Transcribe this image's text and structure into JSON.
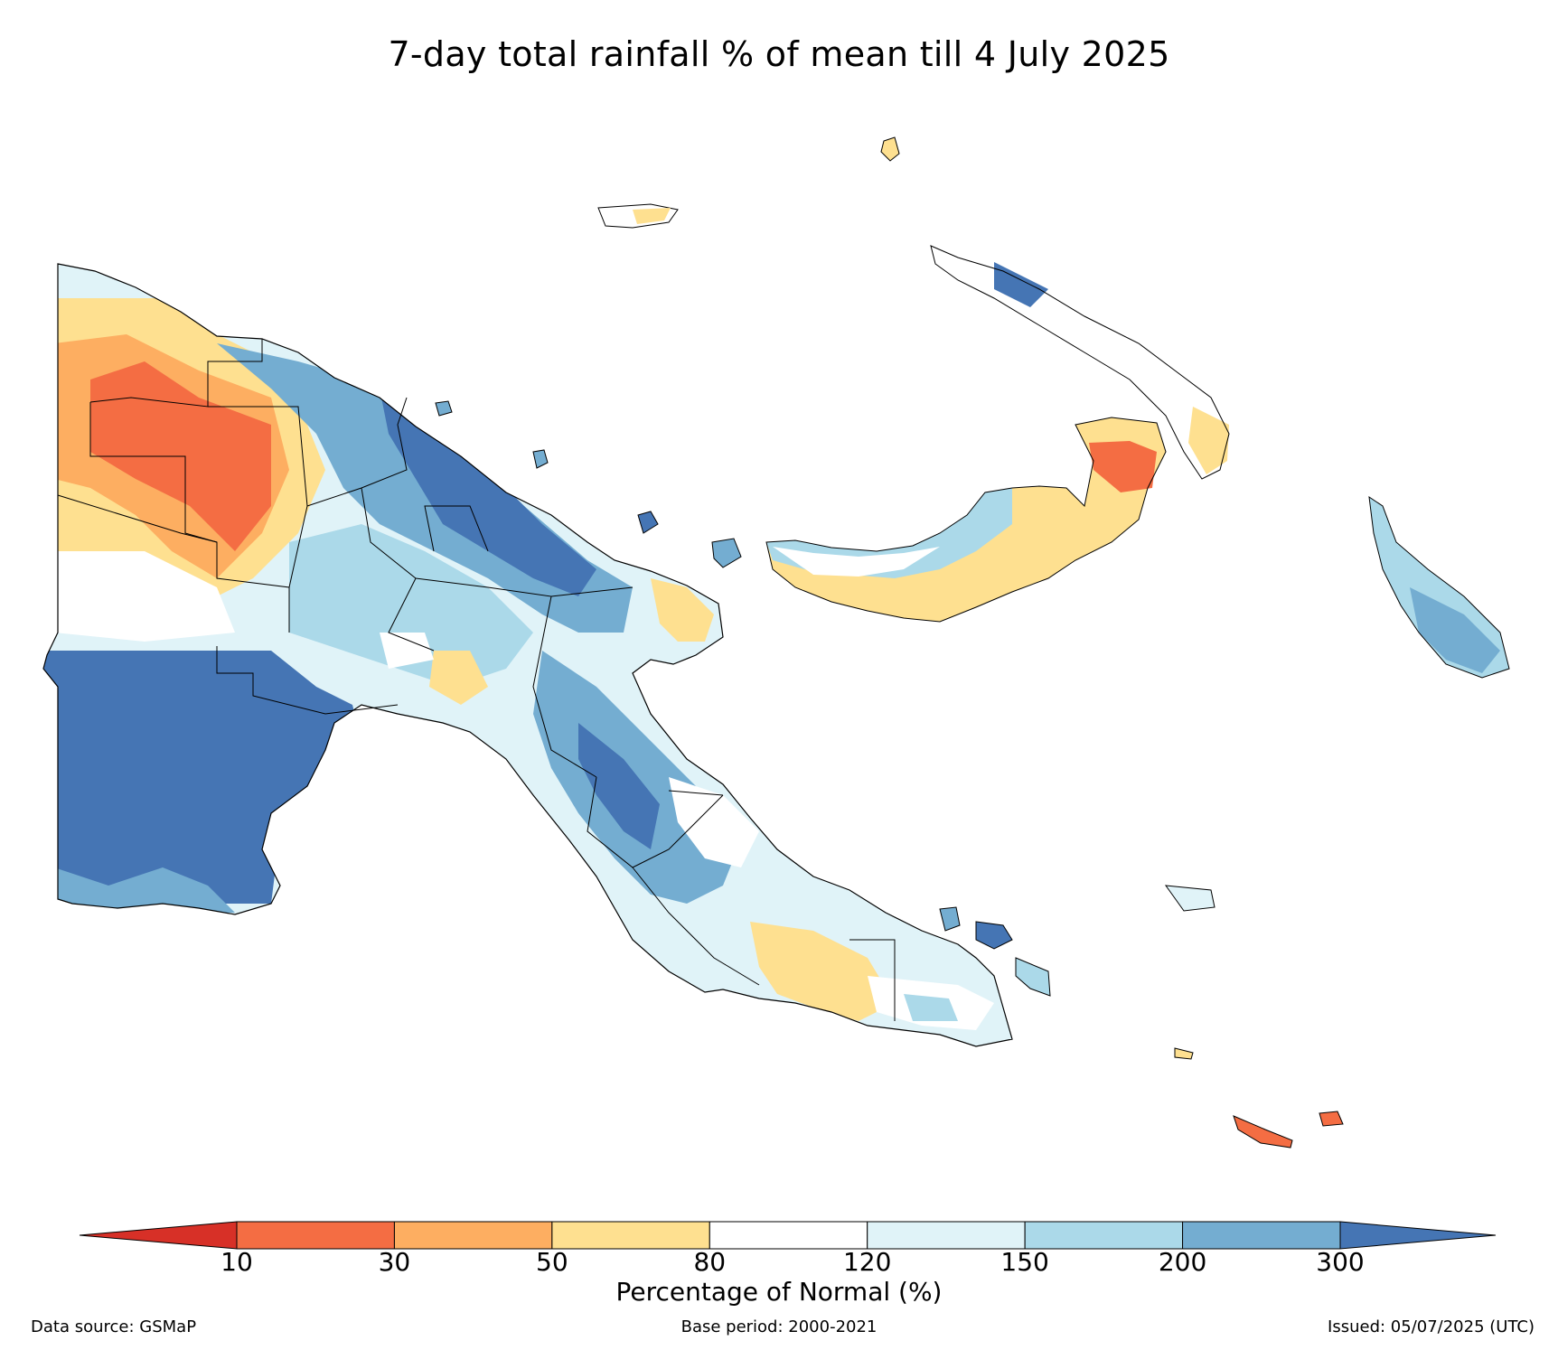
{
  "title": "7-day total rainfall % of mean till 4 July 2025",
  "legend": {
    "label": "Percentage of Normal (%)",
    "ticks": [
      "10",
      "30",
      "50",
      "80",
      "120",
      "150",
      "200",
      "300"
    ],
    "bins": [
      {
        "range": "<10",
        "color": "#d73027"
      },
      {
        "range": "10-30",
        "color": "#f46d43"
      },
      {
        "range": "30-50",
        "color": "#fdae61"
      },
      {
        "range": "50-80",
        "color": "#fee090"
      },
      {
        "range": "80-120",
        "color": "#ffffff"
      },
      {
        "range": "120-150",
        "color": "#e0f3f8"
      },
      {
        "range": "150-200",
        "color": "#abd9e9"
      },
      {
        "range": "200-300",
        "color": "#74add1"
      },
      {
        "range": ">300",
        "color": "#4575b4"
      }
    ]
  },
  "footer": {
    "data_source": "Data source: GSMaP",
    "base_period": "Base period: 2000-2021",
    "issued": "Issued: 05/07/2025 (UTC)"
  }
}
